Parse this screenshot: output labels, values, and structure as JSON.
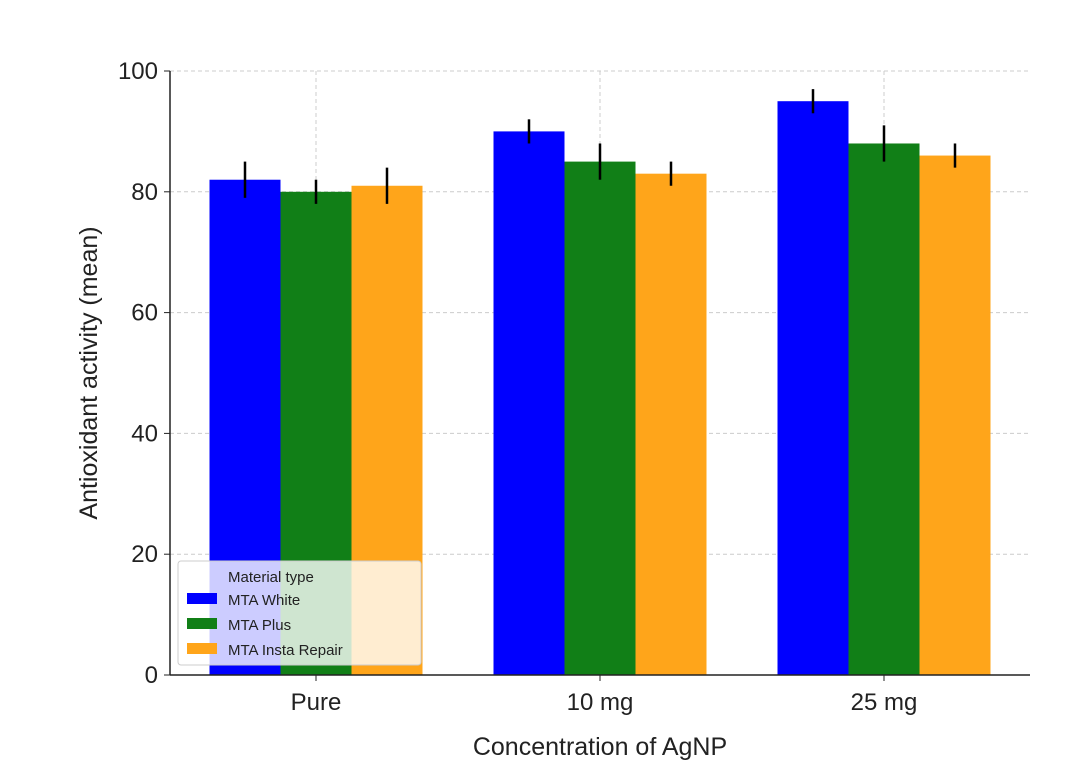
{
  "chart_data": {
    "type": "bar",
    "title": "",
    "xlabel": "Concentration of AgNP",
    "ylabel": "Antioxidant activity (mean)",
    "categories": [
      "Pure",
      "10 mg",
      "25 mg"
    ],
    "ylim": [
      0,
      100
    ],
    "yticks": [
      0,
      20,
      40,
      60,
      80,
      100
    ],
    "grid": true,
    "legend": {
      "title": "Material type",
      "placement": "bottom-left"
    },
    "series": [
      {
        "name": "MTA White",
        "color": "#0000ff",
        "values": [
          82,
          90,
          95
        ],
        "errors": [
          3,
          2,
          2
        ]
      },
      {
        "name": "MTA Plus",
        "color": "#117f17",
        "values": [
          80,
          85,
          88
        ],
        "errors": [
          2,
          3,
          3
        ]
      },
      {
        "name": "MTA Insta Repair",
        "color": "#ffa51a",
        "values": [
          81,
          83,
          86
        ],
        "errors": [
          3,
          2,
          2
        ]
      }
    ]
  }
}
